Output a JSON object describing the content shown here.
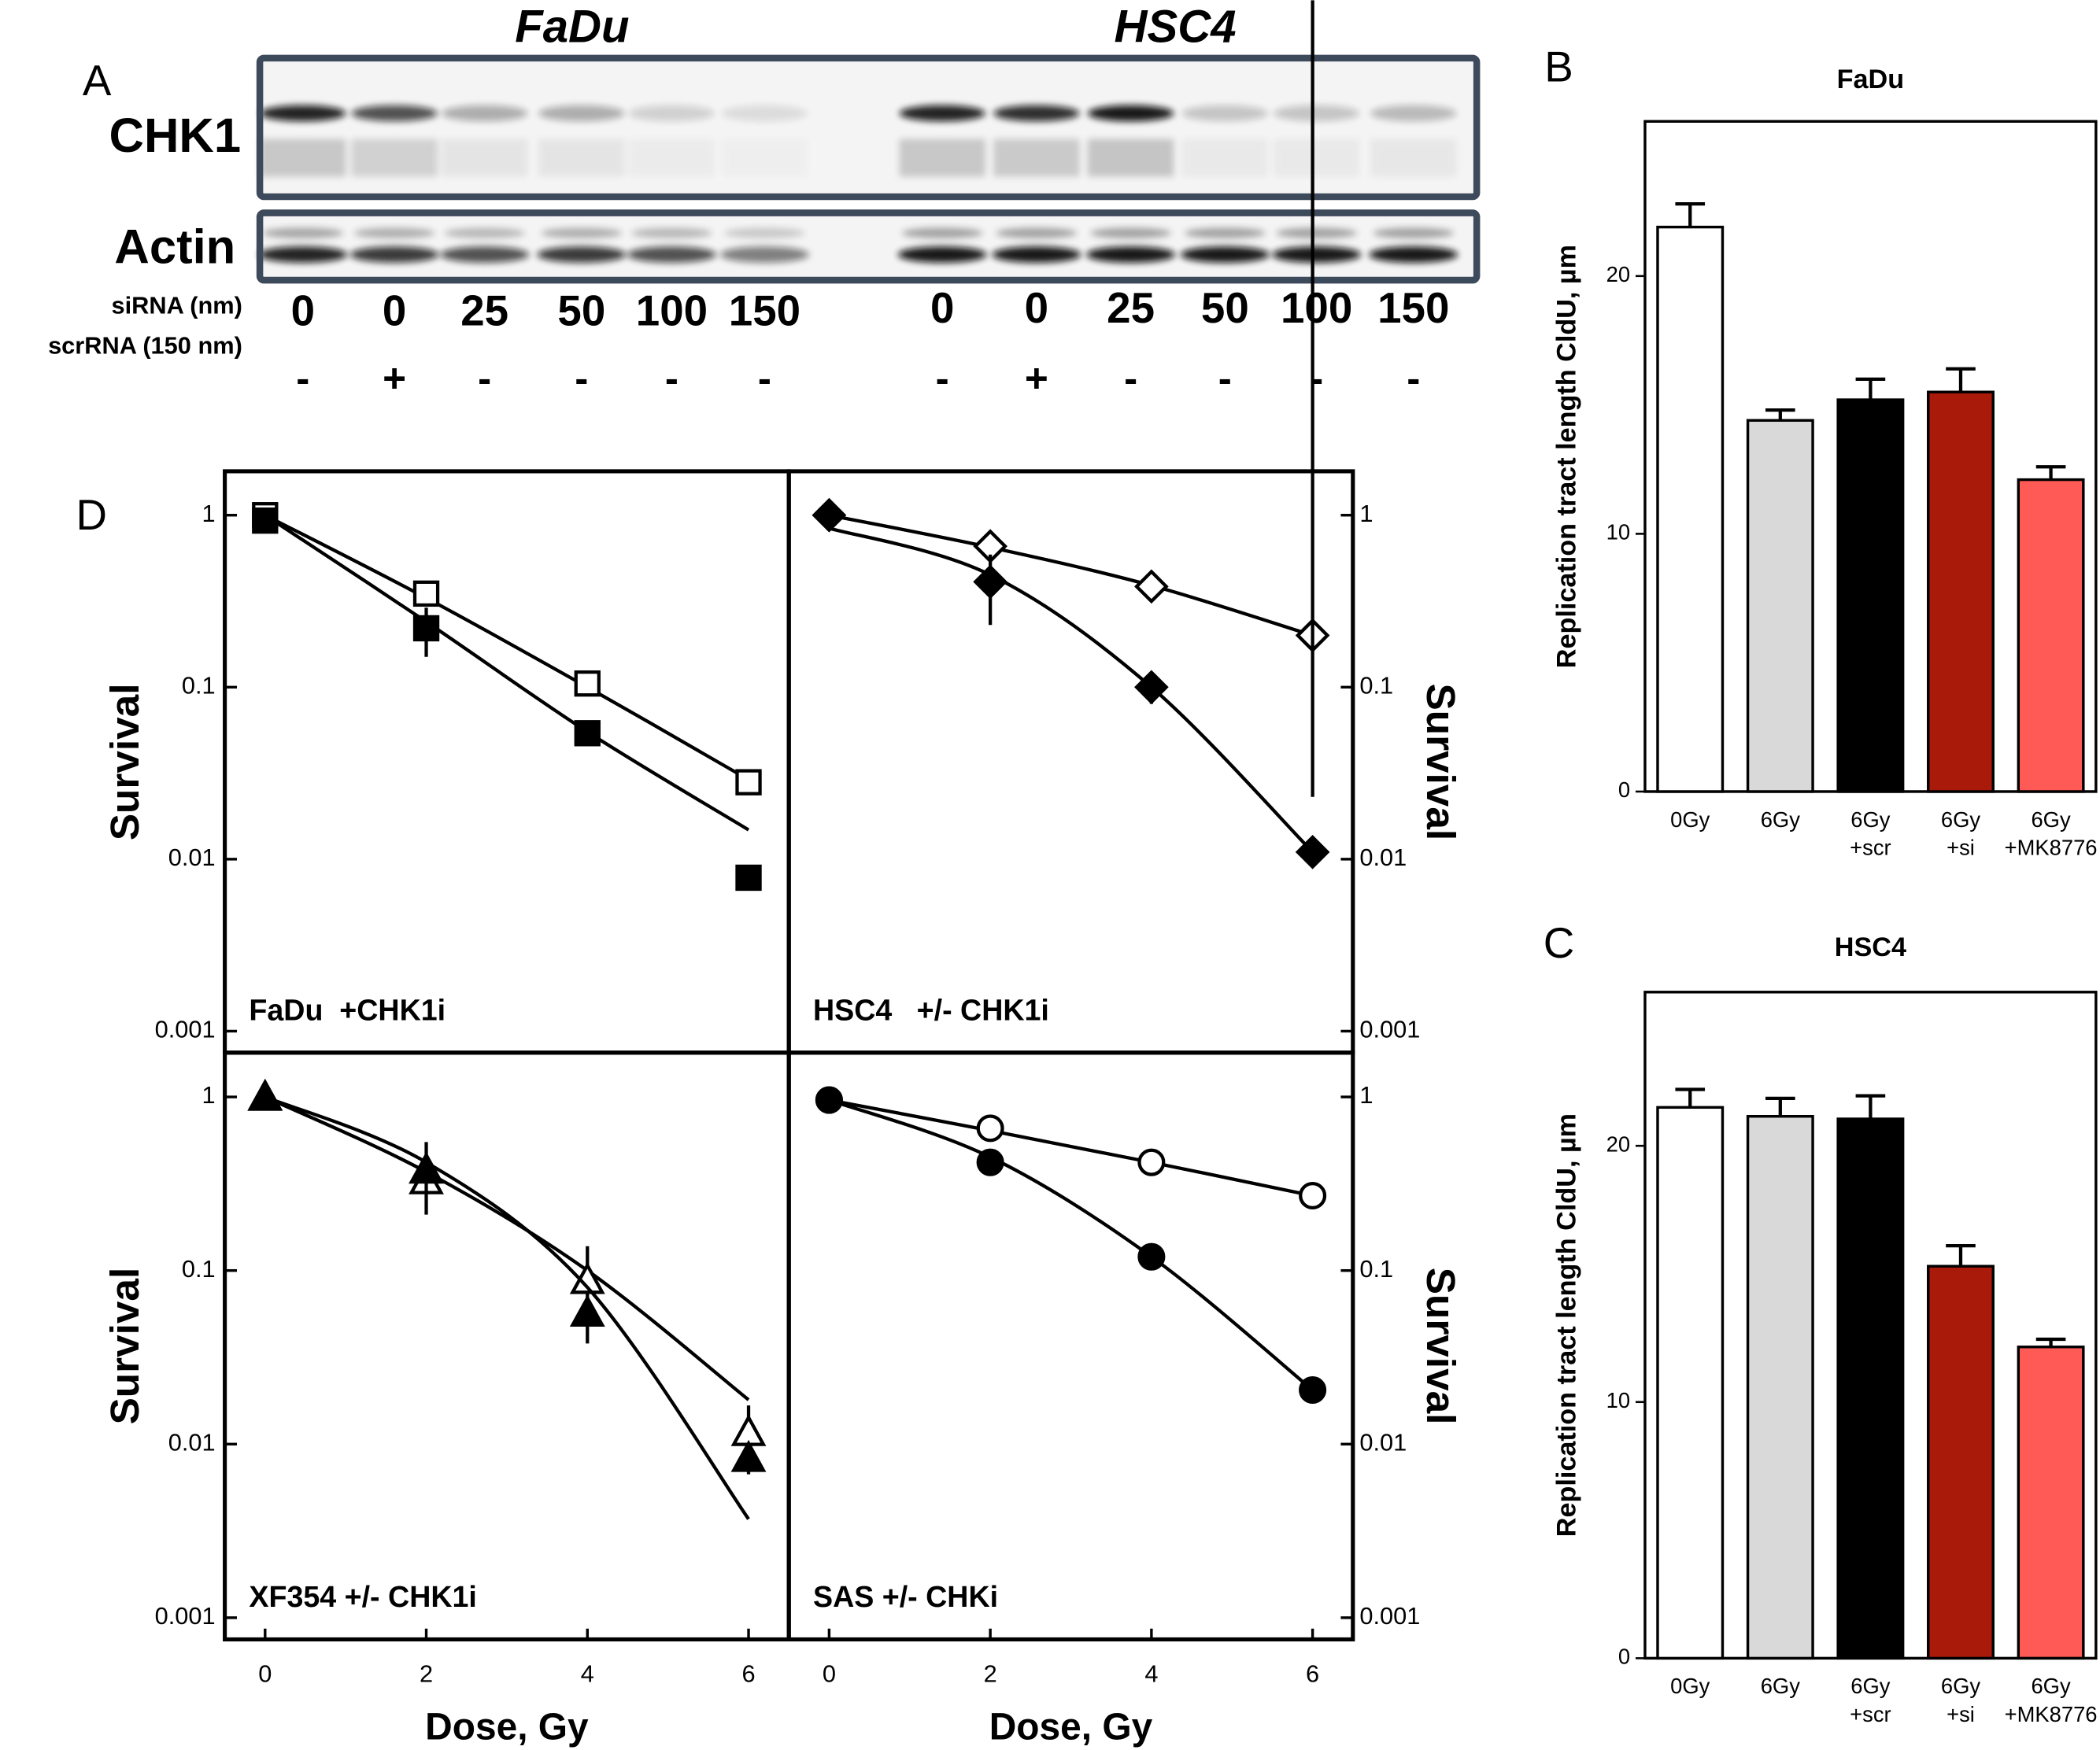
{
  "panel_labels": [
    "A",
    "B",
    "C",
    "D"
  ],
  "blot": {
    "cell_lines": [
      "FaDu",
      "HSC4"
    ],
    "proteins": [
      "CHK1",
      "Actin"
    ],
    "row_labels": [
      "siRNA (nm)",
      "scrRNA (150 nm)"
    ],
    "sirna": [
      [
        0,
        0,
        25,
        50,
        100,
        150
      ],
      [
        0,
        0,
        25,
        50,
        100,
        150
      ]
    ],
    "scrrna": [
      [
        "-",
        "+",
        "-",
        "-",
        "-",
        "-"
      ],
      [
        "-",
        "+",
        "-",
        "-",
        "-",
        "-"
      ]
    ]
  },
  "chart_data": [
    {
      "type": "bar",
      "title": "FaDu",
      "y_label": "Replication tract length CldU, µm",
      "categories": [
        [
          "0Gy"
        ],
        [
          "6Gy"
        ],
        [
          "6Gy",
          "+scr"
        ],
        [
          "6Gy",
          "+si"
        ],
        [
          "6Gy",
          "+MK8776"
        ]
      ],
      "values": [
        21.9,
        14.4,
        15.2,
        15.5,
        12.1
      ],
      "errors": [
        0.9,
        0.4,
        0.8,
        0.9,
        0.5
      ],
      "colors": [
        "#ffffff",
        "#d9d9d9",
        "#000000",
        "#aa1a0a",
        "#ff5a55"
      ],
      "ylim": [
        0,
        26
      ],
      "yticks": [
        0,
        10,
        20
      ]
    },
    {
      "type": "bar",
      "title": "HSC4",
      "y_label": "Replication tract length CldU, µm",
      "categories": [
        [
          "0Gy"
        ],
        [
          "6Gy"
        ],
        [
          "6Gy",
          "+scr"
        ],
        [
          "6Gy",
          "+si"
        ],
        [
          "6Gy",
          "+MK8776"
        ]
      ],
      "values": [
        21.5,
        21.15,
        21.05,
        15.3,
        12.15
      ],
      "errors": [
        0.7,
        0.7,
        0.9,
        0.8,
        0.3
      ],
      "colors": [
        "#ffffff",
        "#d9d9d9",
        "#000000",
        "#aa1a0a",
        "#ff5a55"
      ],
      "ylim": [
        0,
        26
      ],
      "yticks": [
        0,
        10,
        20
      ]
    },
    {
      "type": "line",
      "log_y": true,
      "label": "FaDu  +CHK1i",
      "y_label": "Survival",
      "y_axis_side": "left",
      "x": [
        0,
        2,
        4,
        6
      ],
      "xlim": [
        -0.5,
        6.5
      ],
      "ylim": [
        0.00075,
        1.8
      ],
      "yticks": [
        1,
        0.1,
        0.01,
        0.001
      ],
      "series": [
        {
          "marker": "square",
          "filled": false,
          "color": "#000000",
          "values": [
            1.0,
            0.35,
            0.105,
            0.028
          ],
          "errors": [
            null,
            null,
            null,
            null
          ],
          "fit": [
            1.0,
            0.33,
            0.1,
            0.029
          ]
        },
        {
          "marker": "square",
          "filled": true,
          "color": "#000000",
          "values": [
            0.93,
            0.22,
            0.054,
            0.0078
          ],
          "errors": [
            null,
            0.07,
            0.008,
            null
          ],
          "fit": [
            1.0,
            0.24,
            0.055,
            0.0148
          ]
        }
      ]
    },
    {
      "type": "line",
      "log_y": true,
      "label": "HSC4   +/- CHK1i",
      "y_label": "Survival",
      "y_axis_side": "right",
      "x": [
        0,
        2,
        4,
        6
      ],
      "xlim": [
        -0.5,
        6.5
      ],
      "ylim": [
        0.00075,
        1.8
      ],
      "yticks": [
        1,
        0.1,
        0.01,
        0.001
      ],
      "series": [
        {
          "marker": "diamond",
          "filled": false,
          "color": "#000000",
          "values": [
            1.0,
            0.66,
            0.385,
            0.2
          ],
          "errors": [
            null,
            null,
            null,
            null
          ],
          "fit": [
            1.0,
            0.65,
            0.39,
            0.2
          ]
        },
        {
          "marker": "diamond",
          "filled": true,
          "color": "#000000",
          "values": [
            1.0,
            0.41,
            0.1,
            0.011
          ],
          "errors": [
            null,
            0.18,
            0.02,
            0.012
          ],
          "fit": [
            0.84,
            0.45,
            0.1,
            0.011
          ]
        }
      ]
    },
    {
      "type": "line",
      "log_y": true,
      "label": "XF354 +/- CHK1i",
      "y_label": "Survival",
      "y_axis_side": "left",
      "x_label": "Dose, Gy",
      "x": [
        0,
        2,
        4,
        6
      ],
      "xlim": [
        -0.5,
        6.5
      ],
      "ylim": [
        0.00075,
        1.8
      ],
      "yticks": [
        1,
        0.1,
        0.01,
        0.001
      ],
      "xticks": [
        0,
        2,
        4,
        6
      ],
      "series": [
        {
          "marker": "triangle",
          "filled": false,
          "color": "#000000",
          "values": [
            1.0,
            0.33,
            0.088,
            0.0117
          ],
          "errors": [
            null,
            null,
            0.05,
            0.005
          ],
          "fit": [
            1.0,
            0.37,
            0.1,
            0.018
          ]
        },
        {
          "marker": "triangle",
          "filled": true,
          "color": "#000000",
          "values": [
            1.0,
            0.38,
            0.057,
            0.0083
          ],
          "errors": [
            null,
            0.17,
            null,
            null
          ],
          "fit": [
            1.0,
            0.42,
            0.08,
            0.0037
          ]
        }
      ]
    },
    {
      "type": "line",
      "log_y": true,
      "label": "SAS +/- CHKi",
      "y_label": "Survival",
      "y_axis_side": "right",
      "x_label": "Dose, Gy",
      "x": [
        0,
        2,
        4,
        6
      ],
      "xlim": [
        -0.5,
        6.5
      ],
      "ylim": [
        0.00075,
        1.8
      ],
      "yticks": [
        1,
        0.1,
        0.01,
        0.001
      ],
      "xticks": [
        0,
        2,
        4,
        6
      ],
      "series": [
        {
          "marker": "circle",
          "filled": false,
          "color": "#000000",
          "values": [
            0.96,
            0.66,
            0.42,
            0.27
          ],
          "errors": [
            null,
            null,
            null,
            null
          ],
          "fit": [
            0.96,
            0.64,
            0.42,
            0.27
          ]
        },
        {
          "marker": "circle",
          "filled": true,
          "color": "#000000",
          "values": [
            0.96,
            0.42,
            0.12,
            0.0205
          ],
          "errors": [
            null,
            null,
            null,
            null
          ],
          "fit": [
            0.96,
            0.45,
            0.12,
            0.0205
          ]
        }
      ]
    }
  ]
}
